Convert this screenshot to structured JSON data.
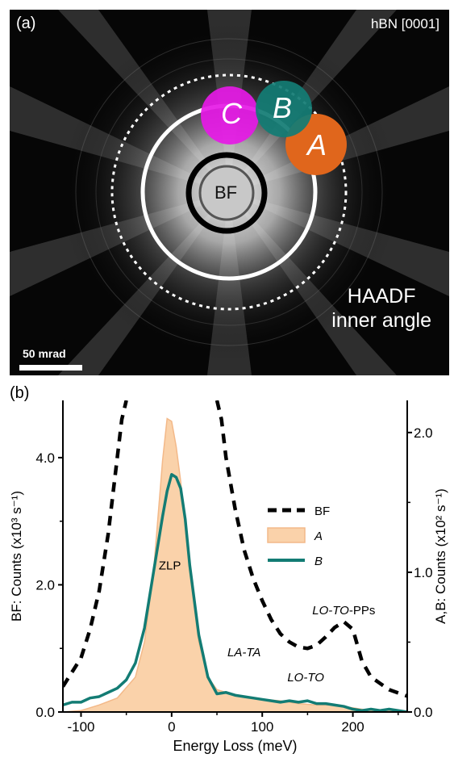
{
  "panel_a": {
    "label": "(a)",
    "crystal": "hBN [0001]",
    "haadf_line1": "HAADF",
    "haadf_line2": "inner angle",
    "scale_bar": "50 mrad",
    "detectors": [
      {
        "id": "C",
        "color": "#e619e6"
      },
      {
        "id": "B",
        "color": "#137c74"
      },
      {
        "id": "A",
        "color": "#e0661c"
      }
    ],
    "bf_label": "BF"
  },
  "chart_data": {
    "type": "line",
    "panel_label": "(b)",
    "xlabel": "Energy Loss (meV)",
    "ylabel_left": "BF: Counts (x10³ s⁻¹)",
    "ylabel_right": "A,B: Counts (x10² s⁻¹)",
    "xlim": [
      -120,
      260
    ],
    "ylim_left": [
      0,
      4.9
    ],
    "ylim_right": [
      0,
      2.23
    ],
    "x_ticks": [
      -100,
      0,
      100,
      200
    ],
    "y_ticks_left": [
      "0.0",
      "2.0",
      "4.0"
    ],
    "y_ticks_right": [
      "0.0",
      "1.0",
      "2.0"
    ],
    "annotations": [
      {
        "text": "ZLP",
        "x": -2,
        "y": 1.02,
        "axis": "right",
        "italic": false
      },
      {
        "text": "LA-TA",
        "x": 80,
        "y": 0.4,
        "axis": "right",
        "italic": true
      },
      {
        "text": "LO-TO",
        "x": 148,
        "y": 0.22,
        "axis": "right",
        "italic": true
      },
      {
        "text": "LO-TO",
        "x": 190,
        "y": 0.7,
        "axis": "right",
        "italic": true,
        "suffix": "-PPs"
      }
    ],
    "series": [
      {
        "name": "BF",
        "axis": "left",
        "style": "dashed",
        "color": "#000000",
        "x": [
          -120,
          -100,
          -90,
          -80,
          -70,
          -60,
          -55,
          -50,
          50,
          55,
          60,
          70,
          80,
          90,
          100,
          110,
          120,
          130,
          140,
          150,
          160,
          170,
          180,
          190,
          200,
          210,
          220,
          230,
          240,
          250,
          260
        ],
        "y": [
          0.4,
          0.85,
          1.3,
          1.9,
          2.8,
          4.0,
          4.6,
          4.9,
          4.9,
          4.6,
          4.0,
          3.2,
          2.55,
          2.1,
          1.75,
          1.45,
          1.23,
          1.1,
          1.02,
          1.0,
          1.05,
          1.18,
          1.33,
          1.42,
          1.3,
          0.8,
          0.55,
          0.45,
          0.35,
          0.3,
          0.25
        ]
      },
      {
        "name": "A",
        "axis": "right",
        "style": "fill",
        "color": "#fad2aa",
        "x": [
          -120,
          -100,
          -80,
          -60,
          -40,
          -30,
          -20,
          -10,
          -5,
          0,
          5,
          10,
          20,
          30,
          40,
          50,
          60,
          80,
          100,
          120,
          140,
          160,
          180,
          200,
          220,
          240,
          260
        ],
        "y": [
          0.0,
          0.01,
          0.05,
          0.1,
          0.25,
          0.5,
          1.0,
          1.8,
          2.1,
          2.08,
          1.9,
          1.65,
          1.0,
          0.5,
          0.25,
          0.16,
          0.14,
          0.11,
          0.09,
          0.08,
          0.06,
          0.05,
          0.05,
          0.03,
          0.01,
          0.01,
          0.0
        ]
      },
      {
        "name": "B",
        "axis": "right",
        "style": "solid",
        "color": "#137c74",
        "x": [
          -120,
          -110,
          -100,
          -90,
          -80,
          -70,
          -60,
          -50,
          -40,
          -30,
          -20,
          -10,
          -5,
          0,
          5,
          10,
          15,
          20,
          30,
          40,
          50,
          60,
          70,
          80,
          90,
          100,
          110,
          120,
          130,
          140,
          150,
          160,
          170,
          180,
          190,
          200,
          210,
          220,
          230,
          240,
          250,
          260
        ],
        "y": [
          0.05,
          0.07,
          0.07,
          0.1,
          0.11,
          0.14,
          0.17,
          0.23,
          0.35,
          0.6,
          1.0,
          1.4,
          1.58,
          1.7,
          1.68,
          1.6,
          1.38,
          1.05,
          0.55,
          0.25,
          0.13,
          0.14,
          0.12,
          0.11,
          0.1,
          0.09,
          0.08,
          0.07,
          0.08,
          0.07,
          0.08,
          0.06,
          0.06,
          0.05,
          0.04,
          0.02,
          0.01,
          0.02,
          0.01,
          0.02,
          0.01,
          0.0
        ]
      }
    ]
  }
}
